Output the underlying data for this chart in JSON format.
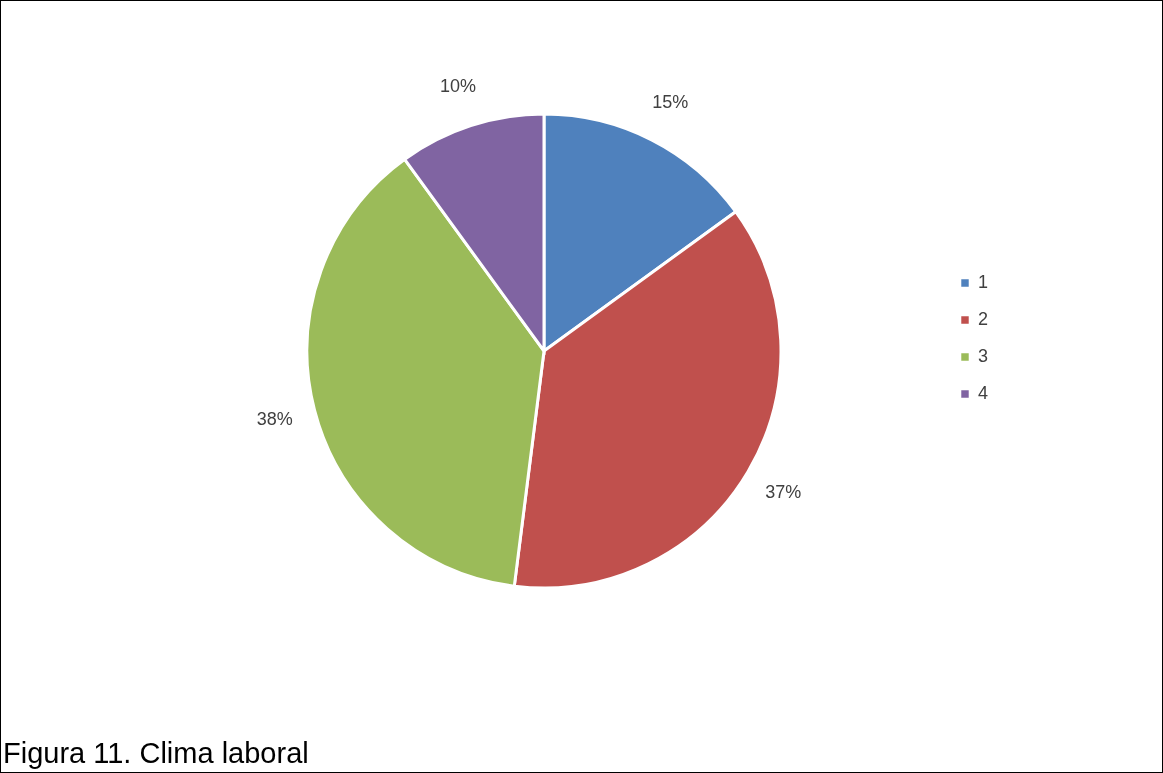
{
  "chart_data": {
    "type": "pie",
    "categories": [
      "1",
      "2",
      "3",
      "4"
    ],
    "values": [
      15,
      37,
      38,
      10
    ],
    "colors": [
      "#4f81bd",
      "#c0504d",
      "#9bbb59",
      "#8064a2"
    ],
    "value_labels": [
      "15%",
      "37%",
      "38%",
      "10%"
    ],
    "legend": "right",
    "annotations": [
      "Figura 11. Clima laboral"
    ]
  }
}
